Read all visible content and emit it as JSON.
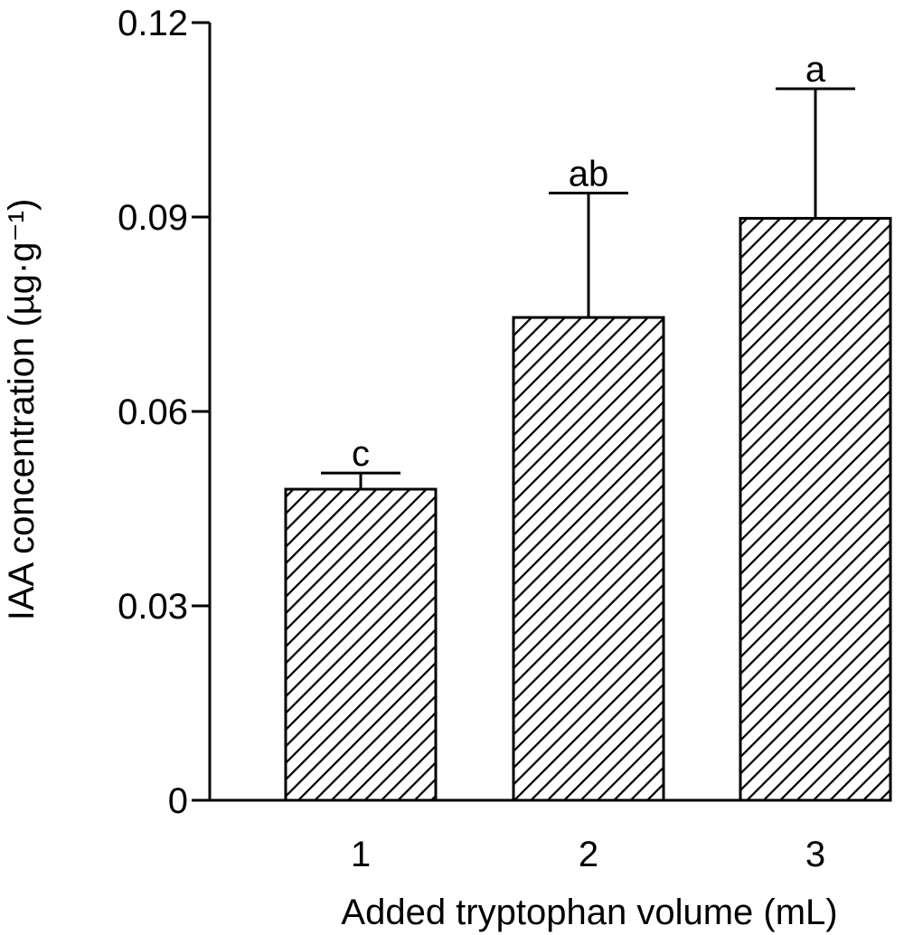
{
  "chart_data": {
    "type": "bar",
    "categories": [
      "1",
      "2",
      "3"
    ],
    "values": [
      0.048,
      0.0745,
      0.0898
    ],
    "error_upper": [
      0.0505,
      0.0937,
      0.1098
    ],
    "significance_labels": [
      "c",
      "ab",
      "a"
    ],
    "xlabel": "Added tryptophan volume (mL)",
    "ylabel": "IAA concentration (µg·g⁻¹)",
    "ylim": [
      0,
      0.12
    ],
    "yticks": [
      0,
      0.03,
      0.06,
      0.09,
      0.12
    ],
    "ytick_labels": [
      "0",
      "0.03",
      "0.06",
      "0.09",
      "0.12"
    ],
    "bar_fill": "diagonal-hatch",
    "grid": false,
    "colors": {
      "bar_stroke": "#000000",
      "hatch": "#000000",
      "background": "#ffffff"
    }
  }
}
